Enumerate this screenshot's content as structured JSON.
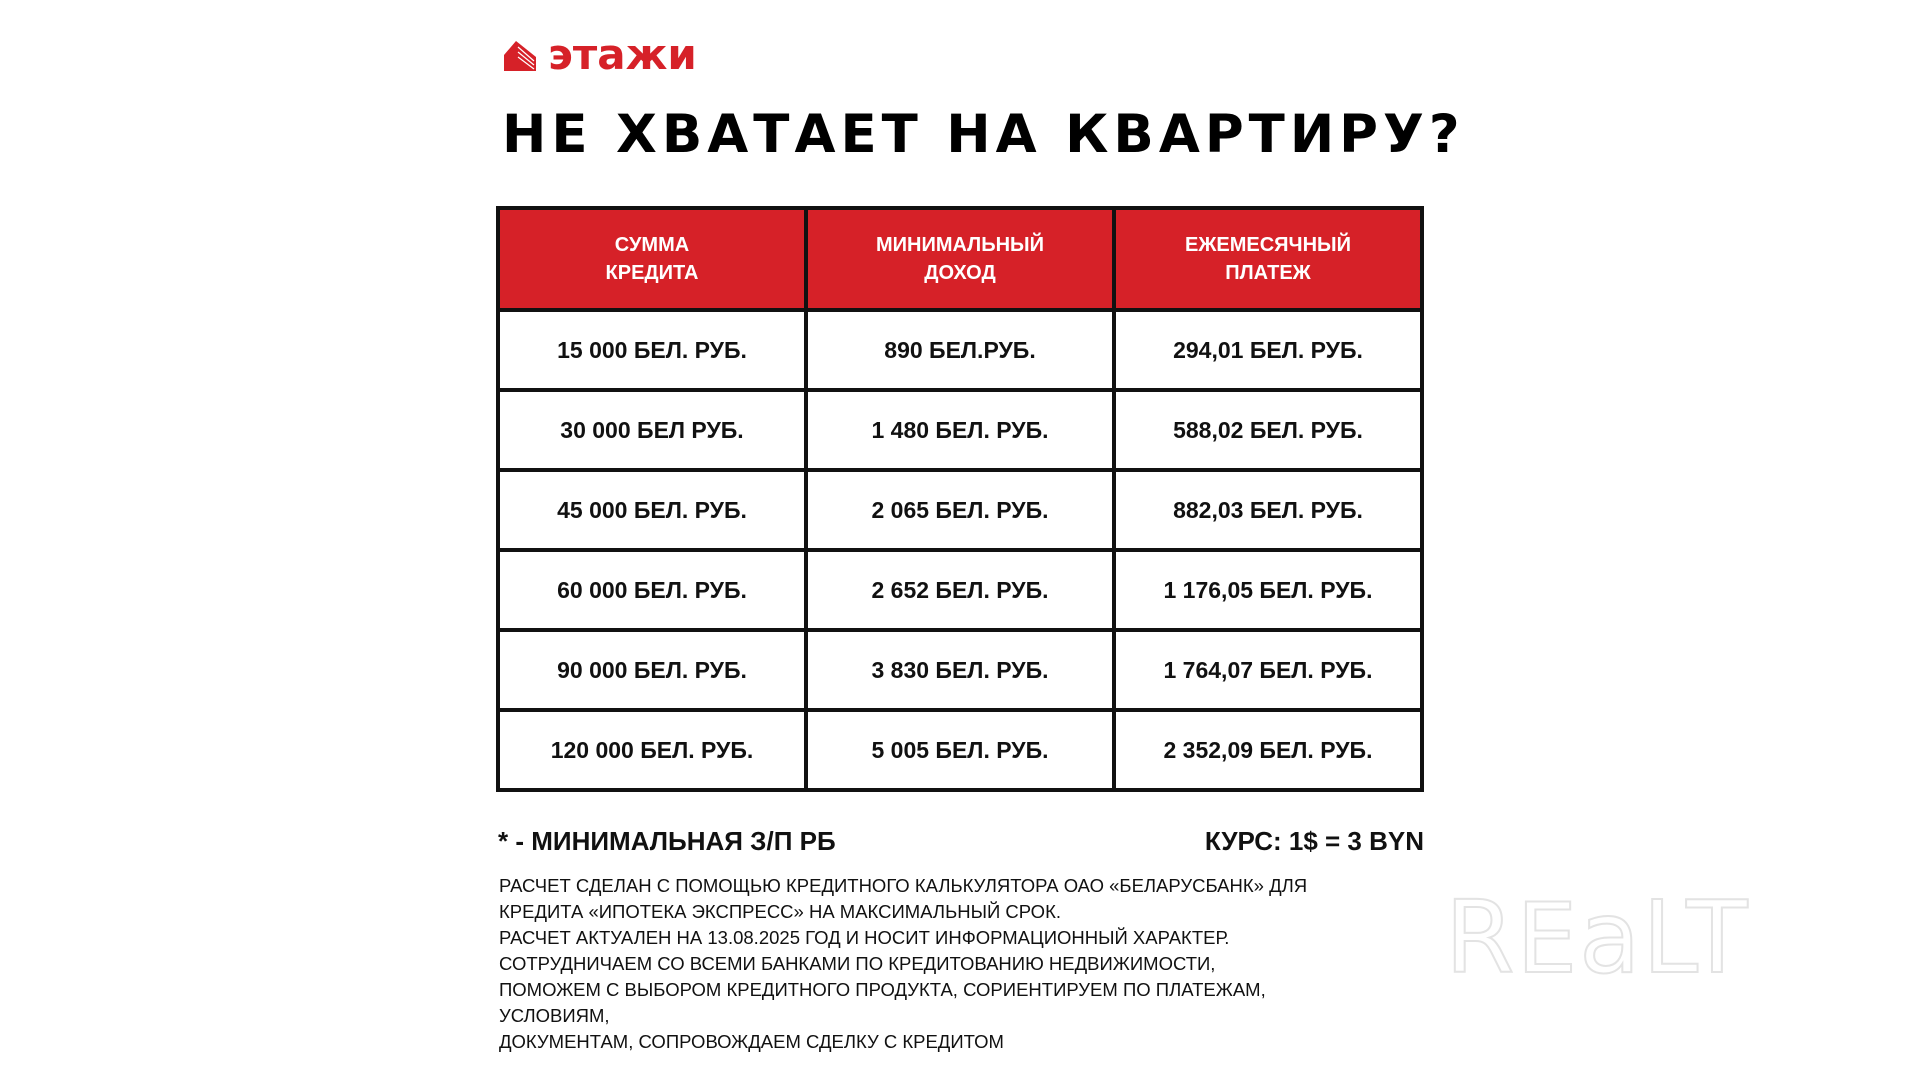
{
  "brand": {
    "logo_text": "этажи",
    "accent_color": "#d62128",
    "watermark": "REALT"
  },
  "title": "НЕ ХВАТАЕТ НА КВАРТИРУ?",
  "table": {
    "headers": [
      {
        "line1": "СУММА",
        "line2": "КРЕДИТА"
      },
      {
        "line1": "МИНИМАЛЬНЫЙ",
        "line2": "ДОХОД"
      },
      {
        "line1": "ЕЖЕМЕСЯЧНЫЙ",
        "line2": "ПЛАТЕЖ"
      }
    ],
    "rows": [
      [
        "15 000 БЕЛ. РУБ.",
        "890 БЕЛ.РУБ.",
        "294,01 БЕЛ. РУБ."
      ],
      [
        "30 000 БЕЛ РУБ.",
        "1 480 БЕЛ. РУБ.",
        "588,02 БЕЛ. РУБ."
      ],
      [
        "45 000 БЕЛ. РУБ.",
        "2 065 БЕЛ. РУБ.",
        "882,03 БЕЛ. РУБ."
      ],
      [
        "60 000 БЕЛ. РУБ.",
        "2 652 БЕЛ. РУБ.",
        "1 176,05 БЕЛ. РУБ."
      ],
      [
        "90 000 БЕЛ. РУБ.",
        "3 830 БЕЛ. РУБ.",
        "1 764,07 БЕЛ. РУБ."
      ],
      [
        "120 000 БЕЛ. РУБ.",
        "5 005 БЕЛ. РУБ.",
        "2 352,09 БЕЛ. РУБ."
      ]
    ]
  },
  "footnote": "* - МИНИМАЛЬНАЯ З/П РБ",
  "rate": "КУРС: 1$ = 3 BYN",
  "notes": [
    "РАСЧЕТ СДЕЛАН С ПОМОЩЬЮ КРЕДИТНОГО КАЛЬКУЛЯТОРА ОАО «БЕЛАРУСБАНК» ДЛЯ",
    "КРЕДИТА «ИПОТЕКА ЭКСПРЕСС» НА МАКСИМАЛЬНЫЙ СРОК.",
    "РАСЧЕТ АКТУАЛЕН НА 13.08.2025 ГОД И НОСИТ ИНФОРМАЦИОННЫЙ ХАРАКТЕР.",
    "СОТРУДНИЧАЕМ СО ВСЕМИ БАНКАМИ ПО КРЕДИТОВАНИЮ НЕДВИЖИМОСТИ,",
    "ПОМОЖЕМ С ВЫБОРОМ КРЕДИТНОГО ПРОДУКТА, СОРИЕНТИРУЕМ ПО ПЛАТЕЖАМ,",
    "УСЛОВИЯМ,",
    "ДОКУМЕНТАМ, СОПРОВОЖДАЕМ СДЕЛКУ С КРЕДИТОМ"
  ]
}
